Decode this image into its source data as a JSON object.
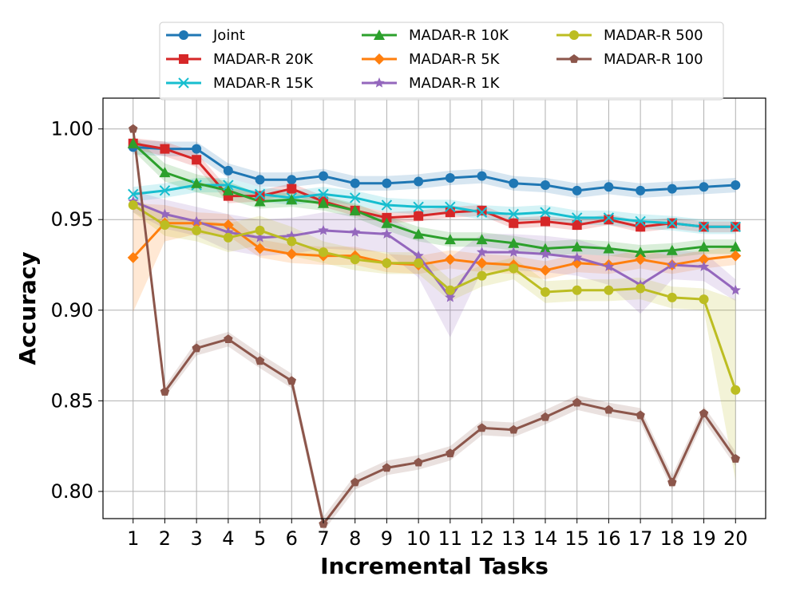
{
  "chart_data": {
    "type": "line",
    "title": "",
    "xlabel": "Incremental Tasks",
    "ylabel": "Accuracy",
    "x": [
      1,
      2,
      3,
      4,
      5,
      6,
      7,
      8,
      9,
      10,
      11,
      12,
      13,
      14,
      15,
      16,
      17,
      18,
      19,
      20
    ],
    "xtick_labels": [
      "1",
      "2",
      "3",
      "4",
      "5",
      "6",
      "7",
      "8",
      "9",
      "10",
      "11",
      "12",
      "13",
      "14",
      "15",
      "16",
      "17",
      "18",
      "19",
      "20"
    ],
    "yticks": [
      0.8,
      0.85,
      0.9,
      0.95,
      1.0
    ],
    "ytick_labels": [
      "0.80",
      "0.85",
      "0.90",
      "0.95",
      "1.00"
    ],
    "ylim": [
      0.785,
      1.017
    ],
    "xlim": [
      0.05,
      20.95
    ],
    "grid": true,
    "legend_position": "top-center",
    "legend_columns": 3,
    "series": [
      {
        "name": "Joint",
        "color": "#1f77b4",
        "marker": "circle",
        "values": [
          0.99,
          0.989,
          0.989,
          0.977,
          0.972,
          0.972,
          0.974,
          0.97,
          0.97,
          0.971,
          0.973,
          0.974,
          0.97,
          0.969,
          0.966,
          0.968,
          0.966,
          0.967,
          0.968,
          0.969
        ],
        "band": [
          0.004,
          0.004,
          0.004,
          0.004,
          0.004,
          0.004,
          0.004,
          0.004,
          0.004,
          0.004,
          0.004,
          0.004,
          0.004,
          0.004,
          0.004,
          0.004,
          0.004,
          0.004,
          0.004,
          0.004
        ]
      },
      {
        "name": "MADAR-R 20K",
        "color": "#d62728",
        "marker": "square",
        "values": [
          0.992,
          0.989,
          0.983,
          0.963,
          0.963,
          0.967,
          0.96,
          0.955,
          0.951,
          0.952,
          0.954,
          0.955,
          0.948,
          0.949,
          0.947,
          0.95,
          0.946,
          0.948,
          0.946,
          0.946
        ],
        "band": [
          0.003,
          0.004,
          0.004,
          0.004,
          0.003,
          0.003,
          0.003,
          0.003,
          0.003,
          0.003,
          0.003,
          0.003,
          0.003,
          0.003,
          0.003,
          0.003,
          0.003,
          0.003,
          0.003,
          0.003
        ]
      },
      {
        "name": "MADAR-R 15K",
        "color": "#17becf",
        "marker": "x",
        "values": [
          0.964,
          0.966,
          0.969,
          0.969,
          0.964,
          0.962,
          0.964,
          0.962,
          0.958,
          0.957,
          0.957,
          0.954,
          0.953,
          0.954,
          0.951,
          0.951,
          0.949,
          0.948,
          0.946,
          0.946
        ],
        "band": [
          0.004,
          0.004,
          0.004,
          0.004,
          0.004,
          0.004,
          0.004,
          0.004,
          0.004,
          0.004,
          0.004,
          0.004,
          0.004,
          0.004,
          0.004,
          0.004,
          0.004,
          0.004,
          0.004,
          0.004
        ]
      },
      {
        "name": "MADAR-R 10K",
        "color": "#2ca02c",
        "marker": "triangle",
        "values": [
          0.992,
          0.976,
          0.97,
          0.966,
          0.96,
          0.961,
          0.959,
          0.955,
          0.948,
          0.942,
          0.939,
          0.939,
          0.937,
          0.934,
          0.935,
          0.934,
          0.932,
          0.933,
          0.935,
          0.935
        ],
        "band": [
          0.004,
          0.005,
          0.005,
          0.005,
          0.004,
          0.004,
          0.004,
          0.004,
          0.004,
          0.004,
          0.004,
          0.004,
          0.004,
          0.004,
          0.004,
          0.004,
          0.004,
          0.004,
          0.004,
          0.004
        ]
      },
      {
        "name": "MADAR-R 5K",
        "color": "#ff7f0e",
        "marker": "diamond",
        "values": [
          0.929,
          0.948,
          0.948,
          0.947,
          0.934,
          0.931,
          0.93,
          0.93,
          0.926,
          0.925,
          0.928,
          0.926,
          0.925,
          0.922,
          0.926,
          0.925,
          0.928,
          0.925,
          0.928,
          0.93
        ],
        "band": [
          0.03,
          0.01,
          0.006,
          0.006,
          0.005,
          0.005,
          0.005,
          0.005,
          0.005,
          0.005,
          0.005,
          0.005,
          0.005,
          0.005,
          0.005,
          0.005,
          0.005,
          0.005,
          0.005,
          0.005
        ]
      },
      {
        "name": "MADAR-R 1K",
        "color": "#9467bd",
        "marker": "star",
        "values": [
          0.96,
          0.953,
          0.949,
          0.943,
          0.94,
          0.941,
          0.944,
          0.943,
          0.942,
          0.93,
          0.907,
          0.932,
          0.932,
          0.931,
          0.929,
          0.924,
          0.914,
          0.925,
          0.924,
          0.911
        ],
        "band": [
          0.006,
          0.008,
          0.008,
          0.01,
          0.01,
          0.01,
          0.01,
          0.01,
          0.01,
          0.012,
          0.022,
          0.01,
          0.01,
          0.01,
          0.01,
          0.01,
          0.016,
          0.008,
          0.008,
          0.006
        ]
      },
      {
        "name": "MADAR-R 500",
        "color": "#bcbd22",
        "marker": "circle",
        "values": [
          0.958,
          0.947,
          0.944,
          0.94,
          0.944,
          0.938,
          0.932,
          0.928,
          0.926,
          0.926,
          0.911,
          0.919,
          0.923,
          0.91,
          0.911,
          0.911,
          0.912,
          0.907,
          0.906,
          0.856
        ],
        "band": [
          0.004,
          0.006,
          0.006,
          0.008,
          0.008,
          0.008,
          0.006,
          0.006,
          0.006,
          0.006,
          0.006,
          0.006,
          0.006,
          0.006,
          0.006,
          0.006,
          0.006,
          0.006,
          0.006,
          0.05
        ]
      },
      {
        "name": "MADAR-R 100",
        "color": "#8c564b",
        "marker": "pentagon",
        "values": [
          1.0,
          0.855,
          0.879,
          0.884,
          0.872,
          0.861,
          0.782,
          0.805,
          0.813,
          0.816,
          0.821,
          0.835,
          0.834,
          0.841,
          0.849,
          0.845,
          0.842,
          0.805,
          0.843,
          0.818
        ],
        "band": [
          0.003,
          0.003,
          0.004,
          0.004,
          0.004,
          0.004,
          0.004,
          0.004,
          0.004,
          0.004,
          0.004,
          0.004,
          0.004,
          0.004,
          0.004,
          0.004,
          0.004,
          0.004,
          0.004,
          0.004
        ]
      }
    ]
  }
}
